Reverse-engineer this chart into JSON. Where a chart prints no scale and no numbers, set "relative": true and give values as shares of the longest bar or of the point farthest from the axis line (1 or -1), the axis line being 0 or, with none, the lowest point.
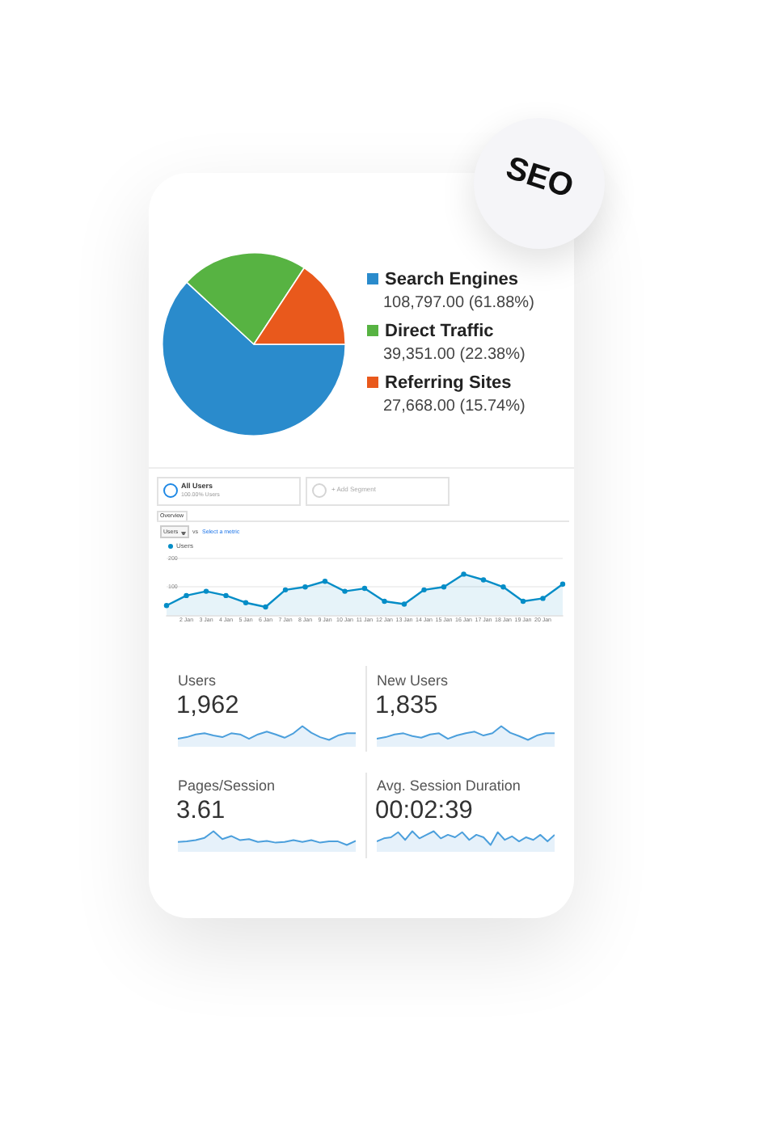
{
  "chart_data": [
    {
      "type": "pie",
      "categories": [
        "Search Engines",
        "Direct Traffic",
        "Referring Sites"
      ],
      "values": [
        108797.0,
        39351.0,
        27668.0
      ],
      "value_labels": [
        "108,797.00 (61.88%)",
        "39,351.00 (22.38%)",
        "27,668.00 (15.74%)"
      ],
      "colors": [
        "#2a8bcc",
        "#57b342",
        "#e9591c"
      ],
      "legend": "right",
      "annotations": [
        "SEO"
      ]
    },
    {
      "type": "area",
      "categories": [
        null,
        "2 Jan",
        "3 Jan",
        "4 Jan",
        "5 Jan",
        "6 Jan",
        "7 Jan",
        "8 Jan",
        "9 Jan",
        "10 Jan",
        "11 Jan",
        "12 Jan",
        "13 Jan",
        "14 Jan",
        "15 Jan",
        "16 Jan",
        "17 Jan",
        "18 Jan",
        "19 Jan",
        "20 Jan",
        null
      ],
      "series": [
        {
          "name": "Users",
          "color": "#058dc7",
          "values": [
            35,
            70,
            85,
            70,
            45,
            30,
            90,
            100,
            120,
            85,
            95,
            50,
            40,
            90,
            100,
            145,
            125,
            100,
            50,
            60,
            110
          ]
        }
      ],
      "ylim": [
        0,
        200
      ],
      "yticks": [
        100,
        200
      ],
      "grid": "y",
      "marker": "circle",
      "legend": "top left",
      "annotations": [
        "All Users",
        "100.00% Users",
        "+ Add Segment",
        "Overview",
        "Users",
        "vs",
        "Select a metric"
      ]
    },
    {
      "type": "area",
      "title": "Users",
      "subtitle": "1,962",
      "relative": true,
      "categories": [
        null,
        null,
        null,
        null,
        null,
        null,
        null,
        null,
        null,
        null,
        null,
        null,
        null,
        null,
        null,
        null,
        null,
        null,
        null,
        null,
        null
      ],
      "color": "#4b9fdc",
      "values": [
        0.08,
        0.2,
        0.4,
        0.48,
        0.32,
        0.2,
        0.48,
        0.4,
        0.08,
        0.4,
        0.6,
        0.4,
        0.16,
        0.48,
        1,
        0.52,
        0.2,
        0,
        0.32,
        0.48,
        0.48
      ]
    },
    {
      "type": "area",
      "title": "New Users",
      "subtitle": "1,835",
      "relative": true,
      "categories": [
        null,
        null,
        null,
        null,
        null,
        null,
        null,
        null,
        null,
        null,
        null,
        null,
        null,
        null,
        null,
        null,
        null,
        null,
        null,
        null,
        null
      ],
      "color": "#4b9fdc",
      "values": [
        0.08,
        0.2,
        0.4,
        0.48,
        0.28,
        0.16,
        0.4,
        0.48,
        0.08,
        0.32,
        0.48,
        0.6,
        0.32,
        0.48,
        1,
        0.52,
        0.28,
        0,
        0.32,
        0.48,
        0.48
      ]
    },
    {
      "type": "area",
      "title": "Pages/Session",
      "subtitle": "3.61",
      "relative": true,
      "categories": [
        null,
        null,
        null,
        null,
        null,
        null,
        null,
        null,
        null,
        null,
        null,
        null,
        null,
        null,
        null,
        null,
        null,
        null,
        null,
        null,
        null
      ],
      "color": "#4b9fdc",
      "values": [
        0.22,
        0.26,
        0.35,
        0.52,
        1,
        0.43,
        0.65,
        0.35,
        0.43,
        0.22,
        0.3,
        0.17,
        0.22,
        0.35,
        0.22,
        0.35,
        0.17,
        0.26,
        0.26,
        0,
        0.3
      ]
    },
    {
      "type": "area",
      "title": "Avg. Session Duration",
      "subtitle": "00:02:39",
      "relative": true,
      "categories": [
        null,
        null,
        null,
        null,
        null,
        null,
        null,
        null,
        null,
        null,
        null,
        null,
        null,
        null,
        null,
        null,
        null,
        null,
        null,
        null,
        null,
        null,
        null,
        null,
        null,
        null
      ],
      "color": "#4b9fdc",
      "values": [
        0.26,
        0.48,
        0.56,
        0.93,
        0.37,
        1,
        0.48,
        0.74,
        1,
        0.48,
        0.74,
        0.56,
        0.93,
        0.37,
        0.74,
        0.56,
        0,
        0.93,
        0.37,
        0.63,
        0.26,
        0.56,
        0.37,
        0.74,
        0.26,
        0.74
      ]
    }
  ]
}
